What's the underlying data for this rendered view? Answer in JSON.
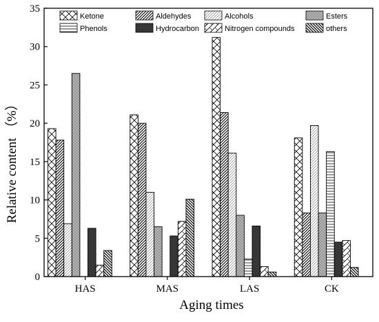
{
  "chart_data": {
    "type": "bar",
    "xlabel": "Aging times",
    "ylabel": "Relative content （%）",
    "ylim": [
      0,
      35
    ],
    "yticks": [
      0,
      5,
      10,
      15,
      20,
      25,
      30,
      35
    ],
    "grid": false,
    "legend_position": "top",
    "categories": [
      "HAS",
      "MAS",
      "LAS",
      "CK"
    ],
    "series": [
      {
        "name": "Ketone",
        "pattern": "crosshatch",
        "values": [
          19.3,
          21.1,
          31.2,
          18.1
        ]
      },
      {
        "name": "Aldehydes",
        "pattern": "diag-dense",
        "values": [
          17.8,
          20.0,
          21.4,
          8.3
        ]
      },
      {
        "name": "Alcohols",
        "pattern": "diag-light",
        "values": [
          6.9,
          11.0,
          16.1,
          19.7
        ]
      },
      {
        "name": "Esters",
        "pattern": "dotted-gray",
        "values": [
          26.5,
          6.5,
          8.0,
          8.3
        ]
      },
      {
        "name": "Phenols",
        "pattern": "horizontal",
        "values": [
          0,
          0,
          2.3,
          16.3
        ]
      },
      {
        "name": "Hydrocarbon",
        "pattern": "dark",
        "values": [
          6.3,
          5.3,
          6.6,
          4.5
        ]
      },
      {
        "name": "Nitrogen compounds",
        "pattern": "zigzag",
        "values": [
          1.5,
          7.2,
          1.3,
          4.7
        ]
      },
      {
        "name": "others",
        "pattern": "backdiag",
        "values": [
          3.4,
          10.1,
          0.6,
          1.2
        ]
      }
    ]
  }
}
